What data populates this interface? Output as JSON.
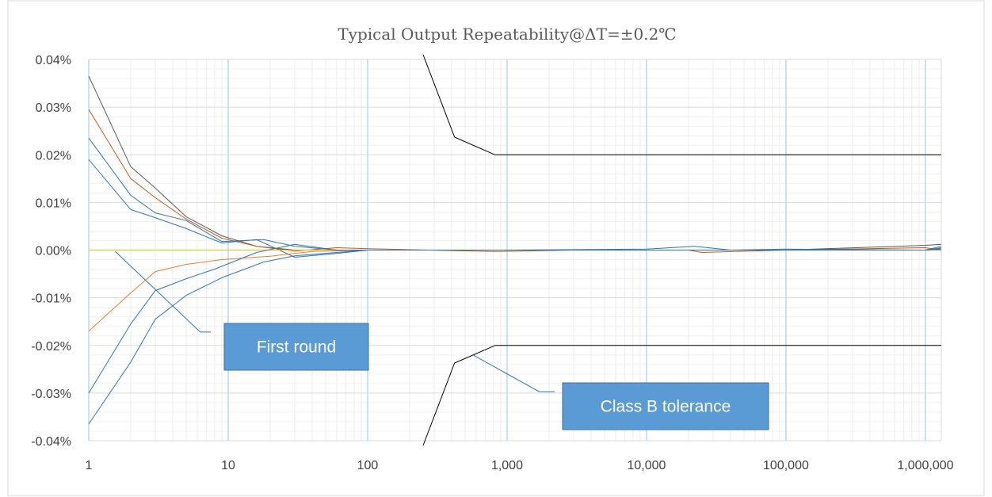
{
  "chart_data": {
    "type": "line",
    "title": "Typical Output Repeatability@ΔT=±0.2℃",
    "xlabel": "",
    "ylabel": "",
    "x_scale": "log",
    "xlim": [
      1,
      1300000
    ],
    "ylim": [
      -0.04,
      0.04
    ],
    "x_ticks": [
      1,
      10,
      100,
      1000,
      10000,
      100000,
      1000000
    ],
    "x_tick_labels": [
      "1",
      "10",
      "100",
      "1,000",
      "10,000",
      "100,000",
      "1,000,000"
    ],
    "y_ticks": [
      -0.04,
      -0.03,
      -0.02,
      -0.01,
      0,
      0.01,
      0.02,
      0.03,
      0.04
    ],
    "y_tick_labels": [
      "-0.04%",
      "-0.03%",
      "-0.02%",
      "-0.01%",
      "0.00%",
      "0.01%",
      "0.02%",
      "0.03%",
      "0.04%"
    ],
    "grid": "major and minor",
    "legend": "none",
    "series": [
      {
        "color": "#595959",
        "points": [
          [
            1,
            0.0365
          ],
          [
            2,
            0.0175
          ],
          [
            3,
            0.013
          ],
          [
            5,
            0.007
          ],
          [
            9,
            0.003
          ],
          [
            16,
            0.0008
          ],
          [
            30,
            0.0
          ],
          [
            60,
            0.0
          ],
          [
            100,
            0.0
          ],
          [
            1000,
            0.0
          ],
          [
            10000,
            0.0
          ],
          [
            100000,
            0.0
          ],
          [
            1000000,
            0.001
          ],
          [
            1300000,
            0.0012
          ]
        ]
      },
      {
        "color": "#c55a11",
        "points": [
          [
            1,
            0.0295
          ],
          [
            2,
            0.015
          ],
          [
            3,
            0.011
          ],
          [
            5,
            0.0065
          ],
          [
            9,
            0.0025
          ],
          [
            16,
            0.0008
          ],
          [
            30,
            -0.0002
          ],
          [
            60,
            0.0005
          ],
          [
            100,
            0.0003
          ],
          [
            800,
            -0.0003
          ],
          [
            3000,
            0.0
          ],
          [
            20000,
            0.0
          ],
          [
            25000,
            -0.0005
          ],
          [
            100000,
            0.0
          ],
          [
            1000000,
            0.0005
          ],
          [
            1300000,
            0.0
          ]
        ]
      },
      {
        "color": "#2e75b6",
        "points": [
          [
            1,
            0.0235
          ],
          [
            2,
            0.0115
          ],
          [
            3,
            0.0078
          ],
          [
            5,
            0.0062
          ],
          [
            9,
            0.0018
          ],
          [
            18,
            0.0022
          ],
          [
            30,
            0.0008
          ],
          [
            60,
            0.0
          ],
          [
            100,
            0.0
          ],
          [
            1000,
            0.0
          ],
          [
            10000,
            0.0002
          ],
          [
            22000,
            0.0008
          ],
          [
            40000,
            0.0
          ],
          [
            100000,
            0.0002
          ],
          [
            1000000,
            0.0
          ],
          [
            1300000,
            0.0008
          ]
        ]
      },
      {
        "color": "#2e75b6",
        "points": [
          [
            1,
            0.019
          ],
          [
            2,
            0.0085
          ],
          [
            3,
            0.0068
          ],
          [
            5,
            0.0045
          ],
          [
            9,
            0.0015
          ],
          [
            16,
            0.0022
          ],
          [
            30,
            -0.0015
          ],
          [
            60,
            -0.0007
          ],
          [
            100,
            0.0
          ],
          [
            1000,
            0.0
          ],
          [
            10000,
            0.0
          ],
          [
            100000,
            0.0
          ],
          [
            1000000,
            0.0
          ],
          [
            1300000,
            0.0002
          ]
        ]
      },
      {
        "color": "#ffc000",
        "points": [
          [
            1,
            0.0
          ],
          [
            9,
            0.0
          ],
          [
            30,
            0.0
          ],
          [
            100,
            0.0
          ],
          [
            1000,
            0.0
          ],
          [
            10000,
            0.0
          ],
          [
            100000,
            0.0
          ],
          [
            1300000,
            0.0
          ]
        ]
      },
      {
        "color": "#ed7d31",
        "points": [
          [
            1,
            -0.017
          ],
          [
            2,
            -0.009
          ],
          [
            3,
            -0.0045
          ],
          [
            5,
            -0.003
          ],
          [
            9,
            -0.002
          ],
          [
            20,
            -0.0013
          ],
          [
            40,
            -0.0003
          ],
          [
            100,
            0.0
          ],
          [
            1000,
            0.0
          ],
          [
            10000,
            0.0
          ],
          [
            100000,
            0.0
          ],
          [
            1300000,
            0.0
          ]
        ]
      },
      {
        "color": "#2e75b6",
        "points": [
          [
            1,
            -0.03
          ],
          [
            2,
            -0.0155
          ],
          [
            3,
            -0.0085
          ],
          [
            5,
            -0.006
          ],
          [
            8,
            -0.004
          ],
          [
            16,
            -0.0005
          ],
          [
            30,
            0.0012
          ],
          [
            60,
            0.0
          ],
          [
            100,
            0.0
          ],
          [
            1000,
            0.0
          ],
          [
            10000,
            0.0
          ],
          [
            100000,
            0.0
          ],
          [
            1000000,
            0.0
          ],
          [
            1300000,
            0.0003
          ]
        ]
      },
      {
        "color": "#2e75b6",
        "points": [
          [
            1,
            -0.0365
          ],
          [
            2,
            -0.0235
          ],
          [
            3,
            -0.0145
          ],
          [
            5,
            -0.0095
          ],
          [
            9,
            -0.0058
          ],
          [
            18,
            -0.0025
          ],
          [
            30,
            -0.0012
          ],
          [
            60,
            -0.0005
          ],
          [
            100,
            0.0
          ],
          [
            1000,
            0.0
          ],
          [
            10000,
            0.0
          ],
          [
            100000,
            0.0
          ],
          [
            1000000,
            0.0
          ],
          [
            1300000,
            0.0005
          ]
        ]
      },
      {
        "color": "#000000",
        "points": [
          [
            250,
            0.041
          ],
          [
            420,
            0.0237
          ],
          [
            820,
            0.02
          ],
          [
            1300000,
            0.02
          ]
        ]
      },
      {
        "color": "#000000",
        "points": [
          [
            250,
            -0.041
          ],
          [
            420,
            -0.0237
          ],
          [
            820,
            -0.02
          ],
          [
            1300000,
            -0.02
          ]
        ]
      }
    ],
    "annotations": [
      {
        "text": "First round",
        "leader": [
          [
            1.55,
            -0.0003
          ],
          [
            6.3,
            -0.0172
          ],
          [
            7.5,
            -0.0172
          ]
        ]
      },
      {
        "text": "Class B tolerance",
        "leader": [
          [
            570,
            -0.022
          ],
          [
            1700,
            -0.0297
          ],
          [
            2200,
            -0.0297
          ]
        ]
      }
    ]
  }
}
